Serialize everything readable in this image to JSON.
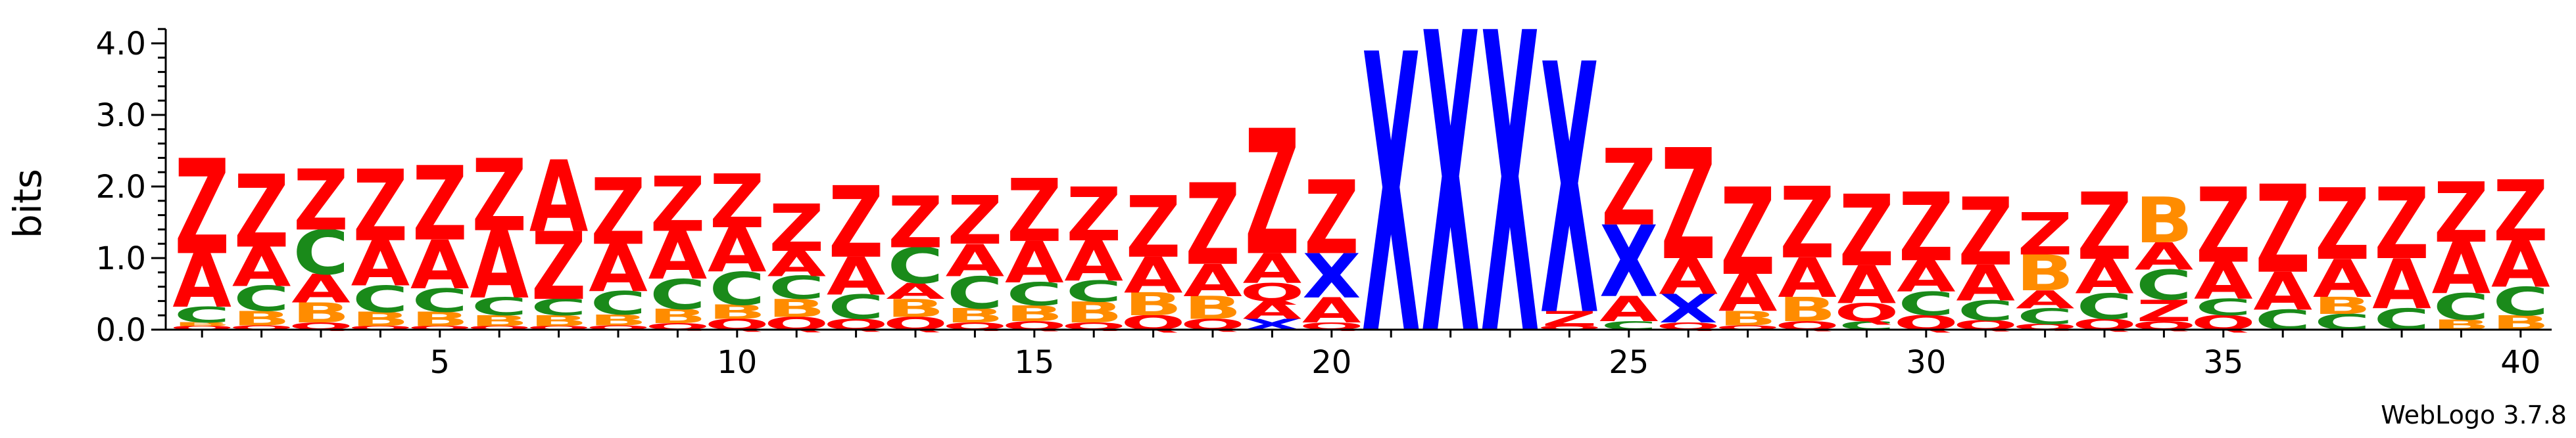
{
  "chart_data": {
    "type": "sequence-logo",
    "ylabel": "bits",
    "ylim": [
      0,
      4.2
    ],
    "y_ticks": [
      "0.0",
      "1.0",
      "2.0",
      "3.0",
      "4.0"
    ],
    "y_tick_values": [
      0,
      1,
      2,
      3,
      4
    ],
    "x_ticks": [
      "5",
      "10",
      "15",
      "20",
      "25",
      "30",
      "35",
      "40"
    ],
    "x_tick_positions": [
      5,
      10,
      15,
      20,
      25,
      30,
      35,
      40
    ],
    "positions": [
      1,
      2,
      3,
      4,
      5,
      6,
      7,
      8,
      9,
      10,
      11,
      12,
      13,
      14,
      15,
      16,
      17,
      18,
      19,
      20,
      21,
      22,
      23,
      24,
      25,
      26,
      27,
      28,
      29,
      30,
      31,
      32,
      33,
      34,
      35,
      36,
      37,
      38,
      39,
      40
    ],
    "residue_colors": {
      "Z": "#ff0000",
      "A": "#ff0000",
      "Q": "#ff0000",
      "C": "#1a8a1a",
      "B": "#ff8c00",
      "X": "#0000ff"
    },
    "stacks": [
      [
        [
          "Q",
          0.05
        ],
        [
          "B",
          0.05
        ],
        [
          "C",
          0.22
        ],
        [
          "A",
          0.75
        ],
        [
          "Z",
          1.33
        ]
      ],
      [
        [
          "Q",
          0.06
        ],
        [
          "B",
          0.2
        ],
        [
          "C",
          0.35
        ],
        [
          "A",
          0.55
        ],
        [
          "Z",
          1.02
        ]
      ],
      [
        [
          "Q",
          0.1
        ],
        [
          "B",
          0.28
        ],
        [
          "A",
          0.4
        ],
        [
          "C",
          0.62
        ],
        [
          "Z",
          0.85
        ]
      ],
      [
        [
          "Q",
          0.05
        ],
        [
          "B",
          0.2
        ],
        [
          "C",
          0.37
        ],
        [
          "A",
          0.63
        ],
        [
          "Z",
          1.0
        ]
      ],
      [
        [
          "Q",
          0.05
        ],
        [
          "B",
          0.2
        ],
        [
          "C",
          0.33
        ],
        [
          "A",
          0.68
        ],
        [
          "Z",
          1.04
        ]
      ],
      [
        [
          "Q",
          0.05
        ],
        [
          "B",
          0.15
        ],
        [
          "C",
          0.25
        ],
        [
          "A",
          0.94
        ],
        [
          "Z",
          1.01
        ]
      ],
      [
        [
          "Q",
          0.05
        ],
        [
          "B",
          0.15
        ],
        [
          "C",
          0.23
        ],
        [
          "Z",
          0.95
        ],
        [
          "A",
          1.0
        ]
      ],
      [
        [
          "Q",
          0.06
        ],
        [
          "B",
          0.15
        ],
        [
          "C",
          0.33
        ],
        [
          "A",
          0.66
        ],
        [
          "Z",
          0.93
        ]
      ],
      [
        [
          "Q",
          0.09
        ],
        [
          "B",
          0.2
        ],
        [
          "C",
          0.42
        ],
        [
          "A",
          0.67
        ],
        [
          "Z",
          0.77
        ]
      ],
      [
        [
          "Q",
          0.15
        ],
        [
          "B",
          0.2
        ],
        [
          "C",
          0.46
        ],
        [
          "A",
          0.62
        ],
        [
          "Z",
          0.75
        ]
      ],
      [
        [
          "Q",
          0.18
        ],
        [
          "B",
          0.25
        ],
        [
          "C",
          0.32
        ],
        [
          "A",
          0.35
        ],
        [
          "Z",
          0.66
        ]
      ],
      [
        [
          "Q",
          0.15
        ],
        [
          "C",
          0.34
        ],
        [
          "A",
          0.53
        ],
        [
          "Z",
          1.0
        ]
      ],
      [
        [
          "Q",
          0.18
        ],
        [
          "B",
          0.25
        ],
        [
          "A",
          0.22
        ],
        [
          "C",
          0.5
        ],
        [
          "Z",
          0.72
        ]
      ],
      [
        [
          "Q",
          0.1
        ],
        [
          "B",
          0.2
        ],
        [
          "C",
          0.45
        ],
        [
          "A",
          0.45
        ],
        [
          "Z",
          0.68
        ]
      ],
      [
        [
          "Q",
          0.12
        ],
        [
          "B",
          0.22
        ],
        [
          "C",
          0.32
        ],
        [
          "A",
          0.58
        ],
        [
          "Z",
          0.88
        ]
      ],
      [
        [
          "Q",
          0.1
        ],
        [
          "B",
          0.29
        ],
        [
          "C",
          0.3
        ],
        [
          "A",
          0.56
        ],
        [
          "Z",
          0.75
        ]
      ],
      [
        [
          "Q",
          0.2
        ],
        [
          "B",
          0.32
        ],
        [
          "A",
          0.5
        ],
        [
          "Z",
          0.86
        ]
      ],
      [
        [
          "Q",
          0.15
        ],
        [
          "B",
          0.32
        ],
        [
          "A",
          0.45
        ],
        [
          "Z",
          1.14
        ]
      ],
      [
        [
          "X",
          0.15
        ],
        [
          "A",
          0.25
        ],
        [
          "Q",
          0.25
        ],
        [
          "A",
          0.42
        ],
        [
          "Z",
          1.75
        ]
      ],
      [
        [
          "Q",
          0.1
        ],
        [
          "A",
          0.35
        ],
        [
          "X",
          0.62
        ],
        [
          "Z",
          1.03
        ]
      ],
      [
        [
          "X",
          3.9
        ]
      ],
      [
        [
          "X",
          4.2
        ]
      ],
      [
        [
          "X",
          4.2
        ]
      ],
      [
        [
          "Q",
          0.05
        ],
        [
          "Z",
          0.21
        ],
        [
          "X",
          3.5
        ]
      ],
      [
        [
          "C",
          0.12
        ],
        [
          "A",
          0.35
        ],
        [
          "X",
          1.0
        ],
        [
          "Z",
          1.07
        ]
      ],
      [
        [
          "Q",
          0.1
        ],
        [
          "X",
          0.4
        ],
        [
          "A",
          0.5
        ],
        [
          "Z",
          1.55
        ]
      ],
      [
        [
          "Q",
          0.06
        ],
        [
          "B",
          0.2
        ],
        [
          "A",
          0.52
        ],
        [
          "Z",
          1.22
        ]
      ],
      [
        [
          "Q",
          0.12
        ],
        [
          "B",
          0.34
        ],
        [
          "A",
          0.55
        ],
        [
          "Z",
          1.0
        ]
      ],
      [
        [
          "C",
          0.12
        ],
        [
          "Q",
          0.25
        ],
        [
          "A",
          0.53
        ],
        [
          "Z",
          1.0
        ]
      ],
      [
        [
          "Q",
          0.2
        ],
        [
          "C",
          0.33
        ],
        [
          "A",
          0.44
        ],
        [
          "Z",
          0.96
        ]
      ],
      [
        [
          "Q",
          0.13
        ],
        [
          "C",
          0.28
        ],
        [
          "A",
          0.5
        ],
        [
          "Z",
          0.95
        ]
      ],
      [
        [
          "Q",
          0.08
        ],
        [
          "C",
          0.22
        ],
        [
          "A",
          0.25
        ],
        [
          "B",
          0.5
        ],
        [
          "Z",
          0.59
        ]
      ],
      [
        [
          "Q",
          0.15
        ],
        [
          "C",
          0.36
        ],
        [
          "A",
          0.48
        ],
        [
          "Z",
          0.94
        ]
      ],
      [
        [
          "Q",
          0.12
        ],
        [
          "Z",
          0.3
        ],
        [
          "C",
          0.42
        ],
        [
          "A",
          0.38
        ],
        [
          "B",
          0.64
        ]
      ],
      [
        [
          "Q",
          0.2
        ],
        [
          "C",
          0.23
        ],
        [
          "A",
          0.52
        ],
        [
          "Z",
          1.05
        ]
      ],
      [
        [
          "C",
          0.28
        ],
        [
          "A",
          0.53
        ],
        [
          "Z",
          1.23
        ]
      ],
      [
        [
          "C",
          0.22
        ],
        [
          "B",
          0.24
        ],
        [
          "A",
          0.53
        ],
        [
          "Z",
          1.0
        ]
      ],
      [
        [
          "C",
          0.3
        ],
        [
          "A",
          0.7
        ],
        [
          "Z",
          1.0
        ]
      ],
      [
        [
          "B",
          0.14
        ],
        [
          "C",
          0.37
        ],
        [
          "A",
          0.72
        ],
        [
          "Z",
          0.84
        ]
      ],
      [
        [
          "B",
          0.2
        ],
        [
          "C",
          0.4
        ],
        [
          "A",
          0.65
        ],
        [
          "Z",
          0.85
        ]
      ]
    ]
  },
  "footer": {
    "credit": "WebLogo 3.7.8"
  }
}
